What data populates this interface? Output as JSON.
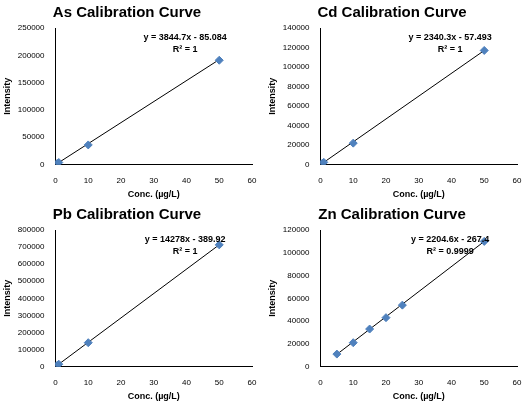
{
  "chart_data": [
    {
      "type": "scatter",
      "title": "As Calibration Curve",
      "x_label": "Conc. (µg/L)",
      "y_label": "Intensity",
      "x": [
        0,
        0.5,
        1,
        10,
        50
      ],
      "values": [
        0,
        1800,
        3800,
        36000,
        191000
      ],
      "color": "#4f81bd",
      "marker": "diamond",
      "grid": false,
      "trendline": {
        "x": [
          0,
          50
        ],
        "values": [
          -85,
          192150
        ],
        "color": "#000000"
      },
      "annotations": [
        "y = 3844.7x - 85.084",
        "R² = 1"
      ],
      "xlim": [
        0,
        60
      ],
      "xticks": [
        0,
        10,
        20,
        30,
        40,
        50,
        60
      ],
      "ylim": [
        0,
        250000
      ],
      "yticks": [
        0,
        50000,
        100000,
        150000,
        200000,
        250000
      ]
    },
    {
      "type": "scatter",
      "title": "Cd Calibration Curve",
      "x_label": "Conc. (µg/L)",
      "y_label": "Intensity",
      "x": [
        0,
        0.5,
        1,
        10,
        50
      ],
      "values": [
        0,
        1100,
        2300,
        22000,
        117000
      ],
      "color": "#4f81bd",
      "marker": "diamond",
      "grid": false,
      "trendline": {
        "x": [
          0,
          50
        ],
        "values": [
          -57,
          116958
        ],
        "color": "#000000"
      },
      "annotations": [
        "y = 2340.3x - 57.493",
        "R² = 1"
      ],
      "xlim": [
        0,
        60
      ],
      "xticks": [
        0,
        10,
        20,
        30,
        40,
        50,
        60
      ],
      "ylim": [
        0,
        140000
      ],
      "yticks": [
        0,
        20000,
        40000,
        60000,
        80000,
        100000,
        120000,
        140000
      ]
    },
    {
      "type": "scatter",
      "title": "Pb Calibration Curve",
      "x_label": "Conc. (µg/L)",
      "y_label": "Intensity",
      "x": [
        0,
        0.5,
        1,
        10,
        50
      ],
      "values": [
        0,
        7000,
        14000,
        140000,
        713000
      ],
      "color": "#4f81bd",
      "marker": "diamond",
      "grid": false,
      "trendline": {
        "x": [
          0,
          50
        ],
        "values": [
          -390,
          713510
        ],
        "color": "#000000"
      },
      "annotations": [
        "y = 14278x - 389.92",
        "R² = 1"
      ],
      "xlim": [
        0,
        60
      ],
      "xticks": [
        0,
        10,
        20,
        30,
        40,
        50,
        60
      ],
      "ylim": [
        0,
        800000
      ],
      "yticks": [
        0,
        100000,
        200000,
        300000,
        400000,
        500000,
        600000,
        700000,
        800000
      ]
    },
    {
      "type": "scatter",
      "title": "Zn Calibration Curve",
      "x_label": "Conc. (µg/L)",
      "y_label": "Intensity",
      "x": [
        5,
        10,
        15,
        20,
        25,
        50
      ],
      "values": [
        11000,
        21000,
        33000,
        43000,
        54000,
        110000
      ],
      "color": "#4f81bd",
      "marker": "diamond",
      "grid": false,
      "trendline": {
        "x": [
          5,
          50
        ],
        "values": [
          10756,
          109963
        ],
        "color": "#000000"
      },
      "annotations": [
        "y = 2204.6x - 267.4",
        "R² = 0.9999"
      ],
      "xlim": [
        0,
        60
      ],
      "xticks": [
        0,
        10,
        20,
        30,
        40,
        50,
        60
      ],
      "ylim": [
        0,
        120000
      ],
      "yticks": [
        0,
        20000,
        40000,
        60000,
        80000,
        100000,
        120000
      ]
    }
  ]
}
